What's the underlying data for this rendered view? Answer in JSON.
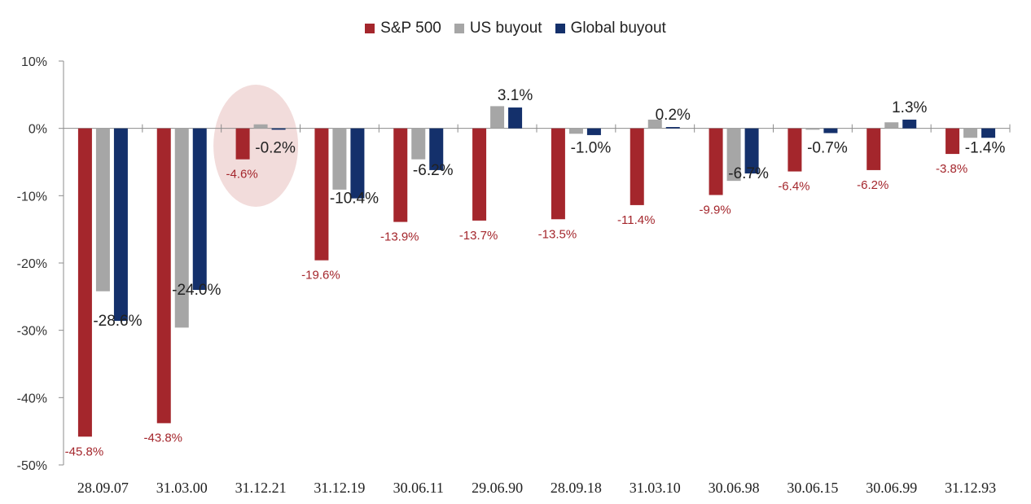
{
  "chart_data": {
    "type": "bar",
    "categories": [
      "28.09.07",
      "31.03.00",
      "31.12.21",
      "31.12.19",
      "30.06.11",
      "29.06.90",
      "28.09.18",
      "31.03.10",
      "30.06.98",
      "30.06.15",
      "30.06.99",
      "31.12.93"
    ],
    "series": [
      {
        "name": "S&P 500",
        "color": "#a4262c",
        "values": [
          -45.8,
          -43.8,
          -4.6,
          -19.6,
          -13.9,
          -13.7,
          -13.5,
          -11.4,
          -9.9,
          -6.4,
          -6.2,
          -3.8
        ]
      },
      {
        "name": "US buyout",
        "color": "#a6a6a6",
        "values": [
          -24.2,
          -29.6,
          0.6,
          -9.1,
          -4.6,
          3.3,
          -0.8,
          1.3,
          -7.8,
          -0.2,
          0.9,
          -1.4
        ]
      },
      {
        "name": "Global buyout",
        "color": "#14306b",
        "values": [
          -28.6,
          -24.0,
          -0.2,
          -10.4,
          -6.2,
          3.1,
          -1.0,
          0.2,
          -6.7,
          -0.7,
          1.3,
          -1.4
        ]
      }
    ],
    "data_labels": {
      "sp500": [
        "-45.8%",
        "-43.8%",
        "-4.6%",
        "-19.6%",
        "-13.9%",
        "-13.7%",
        "-13.5%",
        "-11.4%",
        "-9.9%",
        "-6.4%",
        "-6.2%",
        "-3.8%"
      ],
      "global_buyout": [
        "-28.6%",
        "-24.0%",
        "-0.2%",
        "-10.4%",
        "-6.2%",
        "3.1%",
        "-1.0%",
        "0.2%",
        "-6.7%",
        "-0.7%",
        "1.3%",
        "-1.4%"
      ]
    },
    "yticks": [
      10,
      0,
      -10,
      -20,
      -30,
      -40,
      -50
    ],
    "ytick_labels": [
      "10%",
      "0%",
      "-10%",
      "-20%",
      "-30%",
      "-40%",
      "-50%"
    ],
    "ylim": [
      -50,
      10
    ],
    "highlight_category_index": 2,
    "highlight_color": "#f2dcdb",
    "legend_position": "top-center",
    "grid": false
  }
}
